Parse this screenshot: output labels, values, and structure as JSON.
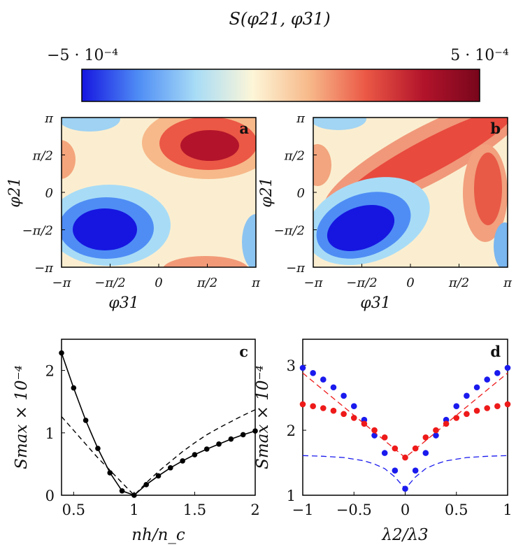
{
  "colorbar": {
    "title": "S(φ21, φ31)",
    "min_label": "−5 · 10⁻⁴",
    "max_label": "5 · 10⁻⁴",
    "colors": [
      "#1616e0",
      "#4f8df5",
      "#a8dcf6",
      "#fdf6d8",
      "#f7b98a",
      "#eb5845",
      "#b3142b",
      "#78061c"
    ]
  },
  "chart_data": [
    {
      "type": "heatmap",
      "panel": "a",
      "xlabel": "φ31",
      "ylabel": "φ21",
      "xlim": [
        -3.1416,
        3.1416
      ],
      "ylim": [
        -3.1416,
        3.1416
      ],
      "zlim": [
        -0.0005,
        0.0005
      ],
      "x_ticks": [
        "−π",
        "−π/2",
        "0",
        "π/2",
        "π"
      ],
      "y_ticks": [
        "−π",
        "−π/2",
        "0",
        "π/2",
        "π"
      ],
      "features": [
        {
          "kind": "min",
          "x": -1.9,
          "y": -1.3,
          "value": -0.0005
        },
        {
          "kind": "max",
          "x": 1.5,
          "y": 1.6,
          "value": 0.00045
        },
        {
          "kind": "max",
          "x": 1.4,
          "y": -3.14,
          "value": 0.0003
        },
        {
          "kind": "max",
          "x": -3.14,
          "y": 1.4,
          "value": 0.0002
        },
        {
          "kind": "min",
          "x": -2.6,
          "y": 3.0,
          "value": -0.0002
        },
        {
          "kind": "min",
          "x": 3.0,
          "y": -2.4,
          "value": -0.0002
        }
      ]
    },
    {
      "type": "heatmap",
      "panel": "b",
      "xlabel": "φ31",
      "ylabel": "φ21",
      "xlim": [
        -3.1416,
        3.1416
      ],
      "ylim": [
        -3.1416,
        3.1416
      ],
      "zlim": [
        -0.0005,
        0.0005
      ],
      "x_ticks": [
        "−π",
        "−π/2",
        "0",
        "π/2",
        "π"
      ],
      "y_ticks": [
        "−π",
        "−π/2",
        "0",
        "π/2",
        "π"
      ],
      "features": [
        {
          "kind": "min",
          "x": -1.9,
          "y": -1.3,
          "value": -0.0005
        },
        {
          "kind": "max",
          "x": 0.6,
          "y": 1.6,
          "value": 0.00035
        },
        {
          "kind": "max",
          "x": 2.3,
          "y": -0.3,
          "value": 0.0003
        },
        {
          "kind": "max",
          "x": -2.4,
          "y": 0.4,
          "value": 0.0003
        },
        {
          "kind": "min",
          "x": -2.6,
          "y": 3.0,
          "value": -0.00025
        },
        {
          "kind": "min",
          "x": 3.0,
          "y": -2.4,
          "value": -0.0003
        }
      ]
    },
    {
      "type": "line",
      "panel": "c",
      "xlabel": "n_h/n_c",
      "ylabel": "S_max × 10⁻⁴",
      "xlim": [
        0.4,
        2
      ],
      "ylim": [
        0,
        2.5
      ],
      "x_ticks": [
        0.5,
        1,
        1.5,
        2
      ],
      "y_ticks": [
        0,
        1,
        2
      ],
      "series": [
        {
          "style": "solid-dots",
          "x": [
            0.4,
            0.5,
            0.6,
            0.7,
            0.8,
            0.9,
            1.0,
            1.1,
            1.2,
            1.3,
            1.4,
            1.5,
            1.6,
            1.7,
            1.8,
            1.9,
            2.0
          ],
          "y": [
            2.28,
            1.72,
            1.2,
            0.75,
            0.36,
            0.07,
            0.0,
            0.17,
            0.31,
            0.44,
            0.55,
            0.65,
            0.74,
            0.82,
            0.9,
            0.97,
            1.03
          ]
        },
        {
          "style": "dashed",
          "x": [
            0.4,
            0.5,
            0.6,
            0.7,
            0.8,
            0.9,
            1.0,
            1.1,
            1.2,
            1.3,
            1.4,
            1.5,
            1.6,
            1.7,
            1.8,
            1.9,
            2.0
          ],
          "y": [
            1.26,
            1.04,
            0.82,
            0.6,
            0.4,
            0.2,
            0.0,
            0.2,
            0.38,
            0.54,
            0.7,
            0.84,
            0.97,
            1.08,
            1.18,
            1.28,
            1.37
          ]
        }
      ]
    },
    {
      "type": "scatter",
      "panel": "d",
      "xlabel": "λ2/λ3",
      "ylabel": "S_max × 10⁻⁴",
      "xlim": [
        -1,
        1
      ],
      "ylim": [
        1,
        3.4
      ],
      "x_ticks": [
        -1,
        -0.5,
        0,
        0.5,
        1
      ],
      "y_ticks": [
        1,
        2,
        3
      ],
      "series": [
        {
          "style": "blue-dots",
          "color": "#1a1aee",
          "x": [
            -1.0,
            -0.9,
            -0.8,
            -0.7,
            -0.6,
            -0.5,
            -0.4,
            -0.3,
            -0.2,
            -0.1,
            0.0,
            0.1,
            0.2,
            0.3,
            0.4,
            0.5,
            0.6,
            0.7,
            0.8,
            0.9,
            1.0
          ],
          "y": [
            2.96,
            2.88,
            2.78,
            2.66,
            2.53,
            2.37,
            2.16,
            1.92,
            1.65,
            1.38,
            1.1,
            1.38,
            1.65,
            1.92,
            2.16,
            2.37,
            2.53,
            2.66,
            2.78,
            2.88,
            2.96
          ]
        },
        {
          "style": "red-dots",
          "color": "#ee1a1a",
          "x": [
            -1.0,
            -0.9,
            -0.8,
            -0.7,
            -0.6,
            -0.5,
            -0.4,
            -0.3,
            -0.2,
            -0.1,
            0.0,
            0.1,
            0.2,
            0.3,
            0.4,
            0.5,
            0.6,
            0.7,
            0.8,
            0.9,
            1.0
          ],
          "y": [
            2.4,
            2.37,
            2.34,
            2.3,
            2.25,
            2.19,
            2.1,
            2.0,
            1.89,
            1.72,
            1.58,
            1.72,
            1.89,
            2.0,
            2.1,
            2.19,
            2.25,
            2.3,
            2.34,
            2.37,
            2.4
          ]
        },
        {
          "style": "red-dashed",
          "color": "#ee1a1a",
          "x": [
            -1.0,
            -0.8,
            -0.6,
            -0.4,
            -0.2,
            0.0,
            0.2,
            0.4,
            0.6,
            0.8,
            1.0
          ],
          "y": [
            2.88,
            2.62,
            2.36,
            2.1,
            1.84,
            1.58,
            1.84,
            2.1,
            2.36,
            2.62,
            2.88
          ]
        },
        {
          "style": "blue-dashed",
          "color": "#1a1aee",
          "x": [
            -1.0,
            -0.8,
            -0.6,
            -0.4,
            -0.3,
            -0.2,
            -0.1,
            0.0,
            0.1,
            0.2,
            0.3,
            0.4,
            0.6,
            0.8,
            1.0
          ],
          "y": [
            1.61,
            1.6,
            1.58,
            1.53,
            1.48,
            1.41,
            1.28,
            1.1,
            1.28,
            1.41,
            1.48,
            1.53,
            1.58,
            1.6,
            1.61
          ]
        }
      ]
    }
  ]
}
